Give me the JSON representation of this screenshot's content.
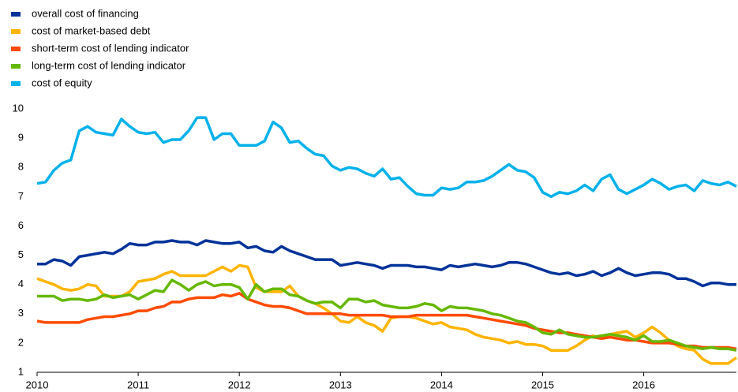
{
  "chart_data": {
    "type": "line",
    "categories": [
      "2010",
      null,
      null,
      null,
      null,
      null,
      null,
      null,
      null,
      null,
      null,
      null,
      "2011",
      null,
      null,
      null,
      null,
      null,
      null,
      null,
      null,
      null,
      null,
      null,
      "2012",
      null,
      null,
      null,
      null,
      null,
      null,
      null,
      null,
      null,
      null,
      null,
      "2013",
      null,
      null,
      null,
      null,
      null,
      null,
      null,
      null,
      null,
      null,
      null,
      "2014",
      null,
      null,
      null,
      null,
      null,
      null,
      null,
      null,
      null,
      null,
      null,
      "2015",
      null,
      null,
      null,
      null,
      null,
      null,
      null,
      null,
      null,
      null,
      null,
      "2016",
      null,
      null,
      null,
      null,
      null,
      null,
      null,
      null,
      null,
      null,
      null
    ],
    "ylim": [
      1,
      10
    ],
    "yticks": [
      1,
      2,
      3,
      4,
      5,
      6,
      7,
      8,
      9,
      10
    ],
    "grid": false,
    "legend": "top-left",
    "series": [
      {
        "name": "overall cost of financing",
        "color": "#003299",
        "values": [
          4.7,
          4.7,
          4.85,
          4.8,
          4.65,
          4.95,
          5.0,
          5.05,
          5.1,
          5.05,
          5.2,
          5.4,
          5.35,
          5.35,
          5.45,
          5.45,
          5.5,
          5.45,
          5.45,
          5.35,
          5.5,
          5.45,
          5.4,
          5.4,
          5.45,
          5.25,
          5.3,
          5.15,
          5.1,
          5.3,
          5.15,
          5.05,
          4.95,
          4.85,
          4.85,
          4.85,
          4.65,
          4.7,
          4.75,
          4.7,
          4.65,
          4.55,
          4.65,
          4.65,
          4.65,
          4.6,
          4.6,
          4.55,
          4.5,
          4.65,
          4.6,
          4.65,
          4.7,
          4.65,
          4.6,
          4.65,
          4.75,
          4.75,
          4.7,
          4.6,
          4.5,
          4.4,
          4.35,
          4.4,
          4.3,
          4.35,
          4.45,
          4.3,
          4.4,
          4.55,
          4.4,
          4.3,
          4.35,
          4.4,
          4.4,
          4.35,
          4.2,
          4.2,
          4.1,
          3.95,
          4.05,
          4.05,
          4.0,
          4.0
        ]
      },
      {
        "name": "cost of market-based debt",
        "color": "#ffb400",
        "values": [
          4.2,
          4.1,
          4.0,
          3.85,
          3.8,
          3.85,
          4.0,
          3.95,
          3.6,
          3.6,
          3.6,
          3.75,
          4.1,
          4.15,
          4.2,
          4.35,
          4.45,
          4.3,
          4.3,
          4.3,
          4.3,
          4.45,
          4.6,
          4.45,
          4.65,
          4.6,
          3.9,
          3.75,
          3.75,
          3.75,
          3.95,
          3.6,
          3.45,
          3.35,
          3.2,
          3.0,
          2.75,
          2.7,
          2.9,
          2.7,
          2.6,
          2.4,
          2.85,
          2.9,
          2.9,
          2.85,
          2.75,
          2.65,
          2.7,
          2.55,
          2.5,
          2.45,
          2.3,
          2.2,
          2.15,
          2.1,
          2.0,
          2.05,
          1.95,
          1.95,
          1.9,
          1.75,
          1.75,
          1.75,
          1.9,
          2.1,
          2.25,
          2.15,
          2.3,
          2.35,
          2.4,
          2.2,
          2.35,
          2.55,
          2.35,
          2.1,
          1.9,
          1.8,
          1.75,
          1.45,
          1.3,
          1.3,
          1.3,
          1.5
        ]
      },
      {
        "name": "short-term cost of lending indicator",
        "color": "#ff4b00",
        "values": [
          2.75,
          2.7,
          2.7,
          2.7,
          2.7,
          2.7,
          2.8,
          2.85,
          2.9,
          2.9,
          2.95,
          3.0,
          3.1,
          3.1,
          3.2,
          3.25,
          3.4,
          3.4,
          3.5,
          3.55,
          3.55,
          3.55,
          3.65,
          3.6,
          3.7,
          3.5,
          3.4,
          3.3,
          3.25,
          3.25,
          3.2,
          3.1,
          3.0,
          3.0,
          3.0,
          3.0,
          3.0,
          2.95,
          2.95,
          2.95,
          2.95,
          2.95,
          2.9,
          2.9,
          2.9,
          2.95,
          2.95,
          2.95,
          2.95,
          2.95,
          2.95,
          2.95,
          2.9,
          2.85,
          2.8,
          2.75,
          2.7,
          2.65,
          2.6,
          2.5,
          2.45,
          2.4,
          2.35,
          2.35,
          2.3,
          2.25,
          2.2,
          2.15,
          2.2,
          2.15,
          2.1,
          2.1,
          2.05,
          2.0,
          2.0,
          2.0,
          1.95,
          1.9,
          1.9,
          1.85,
          1.85,
          1.85,
          1.85,
          1.8
        ]
      },
      {
        "name": "long-term cost of lending indicator",
        "color": "#65b800",
        "values": [
          3.6,
          3.6,
          3.6,
          3.45,
          3.5,
          3.5,
          3.45,
          3.5,
          3.65,
          3.55,
          3.6,
          3.65,
          3.5,
          3.65,
          3.8,
          3.75,
          4.15,
          4.0,
          3.8,
          4.0,
          4.1,
          3.95,
          4.0,
          4.0,
          3.9,
          3.5,
          4.0,
          3.75,
          3.85,
          3.85,
          3.65,
          3.6,
          3.45,
          3.35,
          3.4,
          3.4,
          3.2,
          3.5,
          3.5,
          3.4,
          3.45,
          3.3,
          3.25,
          3.2,
          3.2,
          3.25,
          3.35,
          3.3,
          3.1,
          3.25,
          3.2,
          3.2,
          3.15,
          3.1,
          3.0,
          2.95,
          2.85,
          2.75,
          2.7,
          2.55,
          2.35,
          2.3,
          2.45,
          2.3,
          2.25,
          2.2,
          2.2,
          2.25,
          2.3,
          2.25,
          2.2,
          2.1,
          2.25,
          2.05,
          2.05,
          2.1,
          2.0,
          1.9,
          1.85,
          1.8,
          1.85,
          1.8,
          1.8,
          1.75
        ]
      },
      {
        "name": "cost of equity",
        "color": "#00b1ea",
        "values": [
          7.45,
          7.5,
          7.9,
          8.15,
          8.25,
          9.25,
          9.4,
          9.2,
          9.15,
          9.1,
          9.65,
          9.4,
          9.2,
          9.15,
          9.2,
          8.85,
          8.95,
          8.95,
          9.25,
          9.7,
          9.7,
          8.95,
          9.15,
          9.15,
          8.75,
          8.75,
          8.75,
          8.9,
          9.55,
          9.35,
          8.85,
          8.9,
          8.65,
          8.45,
          8.4,
          8.05,
          7.9,
          8.0,
          7.95,
          7.8,
          7.7,
          7.95,
          7.6,
          7.65,
          7.35,
          7.1,
          7.05,
          7.05,
          7.3,
          7.25,
          7.3,
          7.5,
          7.5,
          7.55,
          7.7,
          7.9,
          8.1,
          7.9,
          7.85,
          7.65,
          7.15,
          7.0,
          7.15,
          7.1,
          7.2,
          7.4,
          7.2,
          7.6,
          7.75,
          7.25,
          7.1,
          7.25,
          7.4,
          7.6,
          7.45,
          7.25,
          7.35,
          7.4,
          7.2,
          7.55,
          7.45,
          7.4,
          7.5,
          7.35
        ]
      }
    ]
  }
}
